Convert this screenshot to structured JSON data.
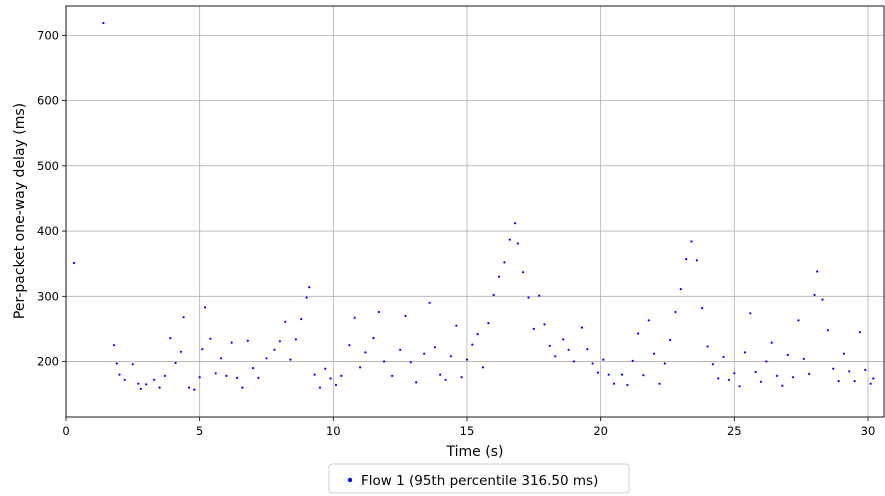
{
  "chart_data": {
    "type": "scatter",
    "title": "",
    "xlabel": "Time (s)",
    "ylabel": "Per-packet one-way delay (ms)",
    "xlim": [
      0,
      30.6
    ],
    "ylim": [
      115,
      745
    ],
    "xticks": [
      0,
      5,
      10,
      15,
      20,
      25,
      30
    ],
    "yticks": [
      200,
      300,
      400,
      500,
      600,
      700
    ],
    "grid": true,
    "legend_position": "bottom-center",
    "series": [
      {
        "name": "Flow 1 (95th percentile 316.50 ms)",
        "color": "#0000ff",
        "points": [
          [
            0.3,
            351
          ],
          [
            1.4,
            719
          ],
          [
            1.8,
            225
          ],
          [
            1.9,
            197
          ],
          [
            2.0,
            180
          ],
          [
            2.2,
            172
          ],
          [
            2.5,
            196
          ],
          [
            2.7,
            166
          ],
          [
            2.8,
            158
          ],
          [
            3.0,
            165
          ],
          [
            3.3,
            172
          ],
          [
            3.5,
            160
          ],
          [
            3.7,
            178
          ],
          [
            3.9,
            236
          ],
          [
            4.1,
            198
          ],
          [
            4.3,
            215
          ],
          [
            4.4,
            268
          ],
          [
            4.6,
            160
          ],
          [
            4.8,
            157
          ],
          [
            5.0,
            176
          ],
          [
            5.1,
            219
          ],
          [
            5.2,
            283
          ],
          [
            5.4,
            235
          ],
          [
            5.6,
            182
          ],
          [
            5.8,
            205
          ],
          [
            6.0,
            178
          ],
          [
            6.2,
            229
          ],
          [
            6.4,
            175
          ],
          [
            6.6,
            160
          ],
          [
            6.8,
            232
          ],
          [
            7.0,
            190
          ],
          [
            7.2,
            175
          ],
          [
            7.5,
            205
          ],
          [
            7.8,
            218
          ],
          [
            8.0,
            231
          ],
          [
            8.2,
            261
          ],
          [
            8.4,
            203
          ],
          [
            8.6,
            234
          ],
          [
            8.8,
            265
          ],
          [
            9.0,
            298
          ],
          [
            9.1,
            314
          ],
          [
            9.3,
            180
          ],
          [
            9.5,
            160
          ],
          [
            9.7,
            189
          ],
          [
            9.9,
            174
          ],
          [
            10.1,
            164
          ],
          [
            10.3,
            178
          ],
          [
            10.6,
            225
          ],
          [
            10.8,
            267
          ],
          [
            11.0,
            191
          ],
          [
            11.2,
            214
          ],
          [
            11.5,
            236
          ],
          [
            11.7,
            276
          ],
          [
            11.9,
            200
          ],
          [
            12.2,
            178
          ],
          [
            12.5,
            218
          ],
          [
            12.7,
            270
          ],
          [
            12.9,
            199
          ],
          [
            13.1,
            168
          ],
          [
            13.4,
            212
          ],
          [
            13.6,
            290
          ],
          [
            13.8,
            222
          ],
          [
            14.0,
            180
          ],
          [
            14.2,
            172
          ],
          [
            14.4,
            208
          ],
          [
            14.6,
            255
          ],
          [
            14.8,
            176
          ],
          [
            15.0,
            203
          ],
          [
            15.2,
            226
          ],
          [
            15.4,
            242
          ],
          [
            15.6,
            191
          ],
          [
            15.8,
            259
          ],
          [
            16.0,
            302
          ],
          [
            16.2,
            330
          ],
          [
            16.4,
            352
          ],
          [
            16.6,
            387
          ],
          [
            16.8,
            412
          ],
          [
            16.9,
            381
          ],
          [
            17.1,
            337
          ],
          [
            17.3,
            298
          ],
          [
            17.5,
            250
          ],
          [
            17.7,
            301
          ],
          [
            17.9,
            257
          ],
          [
            18.1,
            224
          ],
          [
            18.3,
            208
          ],
          [
            18.6,
            234
          ],
          [
            18.8,
            218
          ],
          [
            19.0,
            200
          ],
          [
            19.3,
            252
          ],
          [
            19.5,
            219
          ],
          [
            19.7,
            197
          ],
          [
            19.9,
            183
          ],
          [
            20.1,
            203
          ],
          [
            20.3,
            180
          ],
          [
            20.5,
            166
          ],
          [
            20.8,
            180
          ],
          [
            21.0,
            164
          ],
          [
            21.2,
            201
          ],
          [
            21.4,
            243
          ],
          [
            21.6,
            179
          ],
          [
            21.8,
            263
          ],
          [
            22.0,
            212
          ],
          [
            22.2,
            166
          ],
          [
            22.4,
            197
          ],
          [
            22.6,
            233
          ],
          [
            22.8,
            276
          ],
          [
            23.0,
            311
          ],
          [
            23.2,
            357
          ],
          [
            23.4,
            384
          ],
          [
            23.6,
            355
          ],
          [
            23.8,
            282
          ],
          [
            24.0,
            223
          ],
          [
            24.2,
            196
          ],
          [
            24.4,
            174
          ],
          [
            24.6,
            207
          ],
          [
            24.8,
            172
          ],
          [
            25.0,
            182
          ],
          [
            25.2,
            162
          ],
          [
            25.4,
            214
          ],
          [
            25.6,
            274
          ],
          [
            25.8,
            184
          ],
          [
            26.0,
            169
          ],
          [
            26.2,
            200
          ],
          [
            26.4,
            229
          ],
          [
            26.6,
            178
          ],
          [
            26.8,
            163
          ],
          [
            27.0,
            210
          ],
          [
            27.2,
            176
          ],
          [
            27.4,
            263
          ],
          [
            27.6,
            204
          ],
          [
            27.8,
            181
          ],
          [
            28.0,
            302
          ],
          [
            28.1,
            338
          ],
          [
            28.3,
            295
          ],
          [
            28.5,
            248
          ],
          [
            28.7,
            189
          ],
          [
            28.9,
            170
          ],
          [
            29.1,
            212
          ],
          [
            29.3,
            185
          ],
          [
            29.5,
            170
          ],
          [
            29.7,
            245
          ],
          [
            29.9,
            187
          ],
          [
            30.1,
            166
          ],
          [
            30.2,
            174
          ]
        ]
      }
    ]
  }
}
